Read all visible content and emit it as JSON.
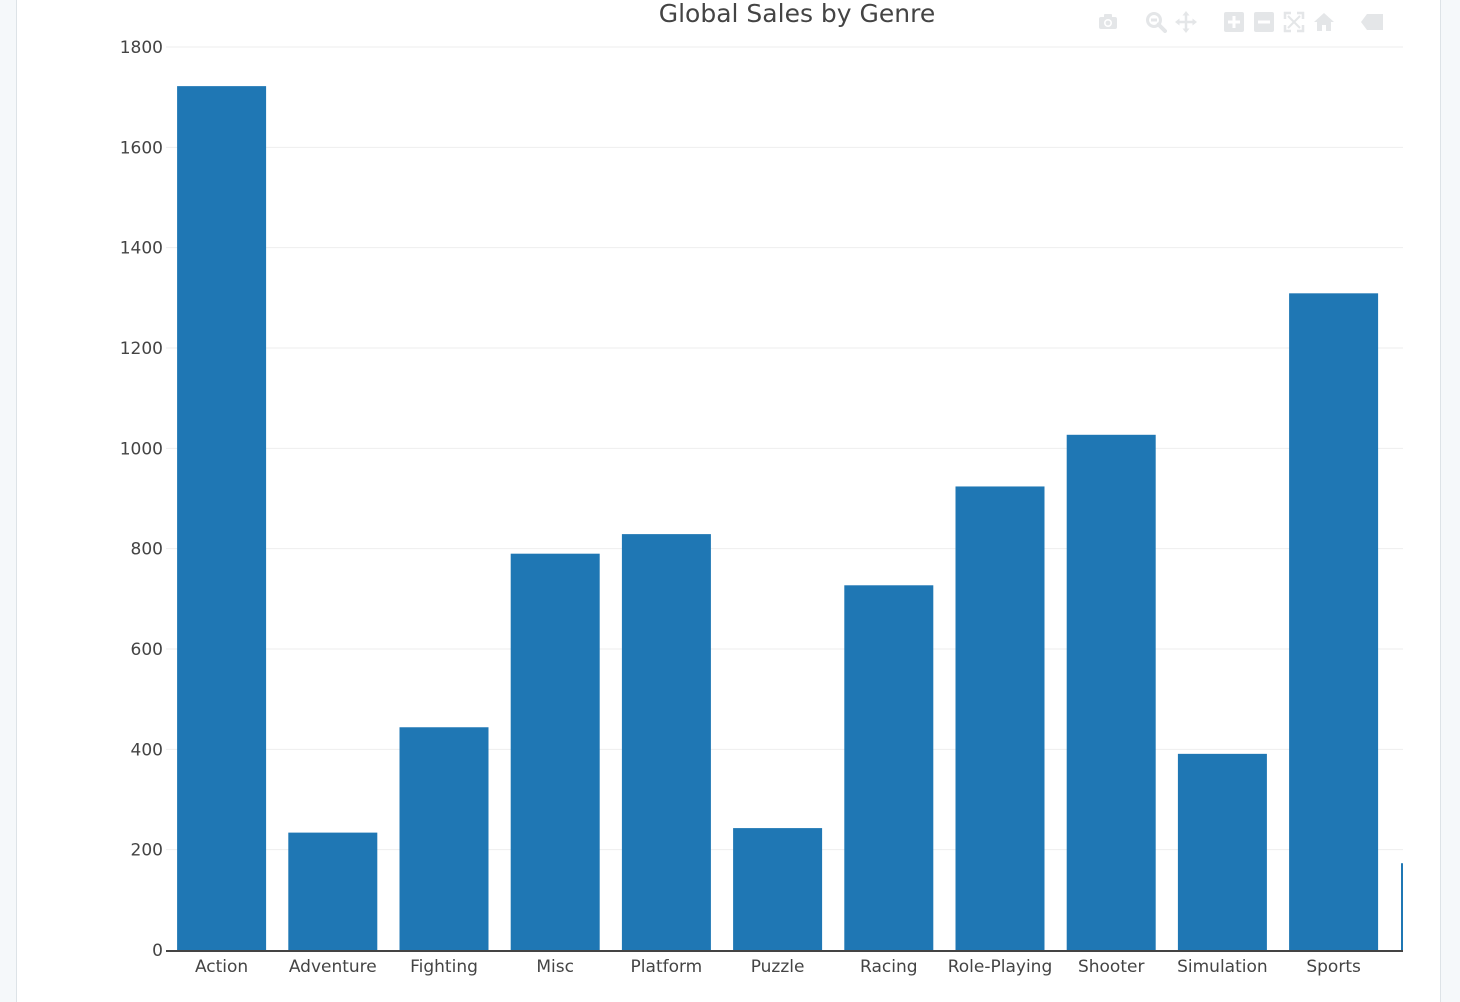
{
  "colors": {
    "bar": "#1f77b4",
    "grid": "#eeeeee",
    "axis_line": "#444444",
    "tick_text": "#444444",
    "title_text": "#444444",
    "modebar_icon": "#e4e6e8"
  },
  "modebar": {
    "groups": [
      [
        "camera-icon"
      ],
      [
        "zoom-icon",
        "pan-icon"
      ],
      [
        "zoom-in-icon",
        "zoom-out-icon",
        "autoscale-icon",
        "reset-axes-icon"
      ],
      [
        "tag-icon"
      ]
    ]
  },
  "chart_data": {
    "type": "bar",
    "title": "Global Sales by Genre",
    "xlabel": "",
    "ylabel": "",
    "categories": [
      "Action",
      "Adventure",
      "Fighting",
      "Misc",
      "Platform",
      "Puzzle",
      "Racing",
      "Role-Playing",
      "Shooter",
      "Simulation",
      "Sports"
    ],
    "values": [
      1722,
      234,
      444,
      790,
      829,
      243,
      727,
      924,
      1027,
      391,
      1309
    ],
    "partial_next_bar_value": 173,
    "ylim": [
      0,
      1800
    ],
    "yticks": [
      0,
      200,
      400,
      600,
      800,
      1000,
      1200,
      1400,
      1600,
      1800
    ],
    "grid": true,
    "legend": "none"
  }
}
